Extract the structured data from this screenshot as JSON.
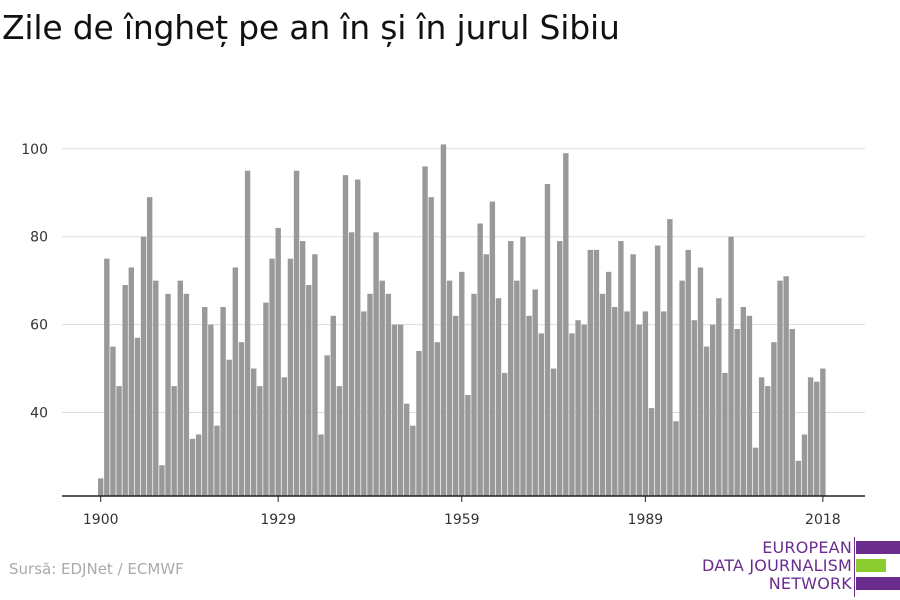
{
  "title": "Zile de îngheț pe an în și în jurul Sibiu",
  "source": "Sursă: EDJNet / ECMWF",
  "logo": {
    "line1": "EUROPEAN",
    "line2": "DATA JOURNALISM",
    "line3": "NETWORK",
    "colors": {
      "purple": "#6a2d8e",
      "green": "#8ccc2e"
    }
  },
  "colors": {
    "bar": "#999999",
    "grid": "#dddddd",
    "axis": "#222222"
  },
  "chart_data": {
    "type": "bar",
    "x_tick_labels": [
      "1900",
      "1929",
      "1959",
      "1989",
      "2018"
    ],
    "y_tick_labels": [
      "40",
      "60",
      "80",
      "100"
    ],
    "ylim": [
      21,
      102
    ],
    "grid": true,
    "xlabel": "",
    "ylabel": "",
    "x": [
      1900,
      1901,
      1902,
      1903,
      1904,
      1905,
      1906,
      1907,
      1908,
      1909,
      1910,
      1911,
      1912,
      1913,
      1914,
      1915,
      1916,
      1917,
      1918,
      1919,
      1920,
      1921,
      1922,
      1923,
      1924,
      1925,
      1926,
      1927,
      1928,
      1929,
      1930,
      1931,
      1932,
      1933,
      1934,
      1935,
      1936,
      1937,
      1938,
      1939,
      1940,
      1941,
      1942,
      1943,
      1944,
      1945,
      1946,
      1947,
      1948,
      1949,
      1950,
      1951,
      1952,
      1953,
      1954,
      1955,
      1956,
      1957,
      1958,
      1959,
      1960,
      1961,
      1962,
      1963,
      1964,
      1965,
      1966,
      1967,
      1968,
      1969,
      1970,
      1971,
      1972,
      1973,
      1974,
      1975,
      1976,
      1977,
      1978,
      1979,
      1980,
      1981,
      1982,
      1983,
      1984,
      1985,
      1986,
      1987,
      1988,
      1989,
      1990,
      1991,
      1992,
      1993,
      1994,
      1995,
      1996,
      1997,
      1998,
      1999,
      2000,
      2001,
      2002,
      2003,
      2004,
      2005,
      2006,
      2007,
      2008,
      2009,
      2010,
      2011,
      2012,
      2013,
      2014,
      2015,
      2016,
      2017,
      2018
    ],
    "values": [
      25,
      75,
      55,
      46,
      69,
      73,
      57,
      80,
      89,
      70,
      28,
      67,
      46,
      70,
      67,
      34,
      35,
      64,
      60,
      37,
      64,
      52,
      73,
      56,
      95,
      50,
      46,
      65,
      75,
      82,
      48,
      75,
      95,
      79,
      69,
      76,
      35,
      53,
      62,
      46,
      94,
      81,
      93,
      63,
      67,
      81,
      70,
      67,
      60,
      60,
      42,
      37,
      54,
      96,
      89,
      56,
      101,
      70,
      62,
      72,
      44,
      67,
      83,
      76,
      88,
      66,
      49,
      79,
      70,
      80,
      62,
      68,
      58,
      92,
      50,
      79,
      99,
      58,
      61,
      60,
      77,
      77,
      67,
      72,
      64,
      79,
      63,
      76,
      60,
      63,
      41,
      78,
      63,
      84,
      38,
      70,
      77,
      61,
      73,
      55,
      60,
      66,
      49,
      80,
      59,
      64,
      62,
      32,
      48,
      46,
      56,
      70,
      71,
      59,
      29,
      35,
      48,
      47,
      50
    ]
  }
}
